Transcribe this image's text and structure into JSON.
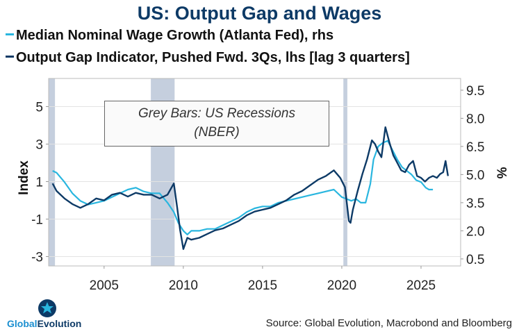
{
  "title": "US: Output Gap and Wages",
  "legend": {
    "wage_label": "Median Nominal Wage Growth (Atlanta Fed), rhs",
    "gap_label": "Output Gap Indicator, Pushed Fwd. 3Qs, lhs [lag 3 quarters]"
  },
  "annotation": {
    "line1": "Grey Bars: US Recessions",
    "line2": "(NBER)"
  },
  "source": "Source: Global Evolution, Macrobond and Bloomberg",
  "logo": {
    "part1": "Global",
    "part2": "Evolution"
  },
  "colors": {
    "wage": "#29b6df",
    "gap": "#0d3a66",
    "recession": "#c5cfde",
    "title": "#0d3a66"
  },
  "chart_data": {
    "type": "line",
    "title": "US: Output Gap and Wages",
    "xlabel": "",
    "ylabel_left": "Index",
    "ylabel_right": "%",
    "x_range": [
      2001.5,
      2027.5
    ],
    "x_ticks": [
      "2005",
      "2010",
      "2015",
      "2020",
      "2025"
    ],
    "x_tick_values": [
      2005,
      2010,
      2015,
      2020,
      2025
    ],
    "y_left_range": [
      -3.5,
      6.5
    ],
    "y_left_ticks": [
      "5",
      "3",
      "1",
      "-1",
      "-3"
    ],
    "y_left_tick_values": [
      5,
      3,
      1,
      -1,
      -3
    ],
    "y_right_range": [
      0.125,
      10.125
    ],
    "y_right_ticks": [
      "9.5",
      "8.0",
      "6.5",
      "5.0",
      "3.5",
      "2.0",
      "0.5"
    ],
    "y_right_tick_values": [
      9.5,
      8.0,
      6.5,
      5.0,
      3.5,
      2.0,
      0.5
    ],
    "recessions": [
      [
        2001.2,
        2001.9
      ],
      [
        2007.95,
        2009.45
      ],
      [
        2020.1,
        2020.35
      ]
    ],
    "series": [
      {
        "name": "Output Gap Indicator, Pushed Fwd. 3Qs, lhs [lag 3 quarters]",
        "axis": "left",
        "x": [
          2001.75,
          2002.0,
          2002.5,
          2003.0,
          2003.5,
          2004.0,
          2004.5,
          2005.0,
          2005.5,
          2006.0,
          2006.5,
          2007.0,
          2007.5,
          2008.0,
          2008.5,
          2009.0,
          2009.4,
          2009.6,
          2009.8,
          2010.0,
          2010.25,
          2010.5,
          2011.0,
          2011.5,
          2012.0,
          2012.5,
          2013.0,
          2013.5,
          2014.0,
          2014.5,
          2015.0,
          2015.5,
          2016.0,
          2016.5,
          2017.0,
          2017.5,
          2018.0,
          2018.5,
          2019.0,
          2019.5,
          2019.9,
          2020.2,
          2020.45,
          2020.55,
          2020.7,
          2021.0,
          2021.3,
          2021.6,
          2021.9,
          2022.1,
          2022.3,
          2022.5,
          2022.75,
          2023.0,
          2023.25,
          2023.5,
          2023.75,
          2024.0,
          2024.25,
          2024.5,
          2024.75,
          2025.0,
          2025.25,
          2025.5,
          2025.75,
          2026.0,
          2026.2,
          2026.4,
          2026.55,
          2026.7
        ],
        "values": [
          0.9,
          0.5,
          0.1,
          -0.2,
          -0.4,
          -0.2,
          0.1,
          0.0,
          0.3,
          0.4,
          0.2,
          0.4,
          0.3,
          0.3,
          0.1,
          0.3,
          0.9,
          -0.3,
          -1.6,
          -2.6,
          -2.0,
          -2.1,
          -2.0,
          -1.8,
          -1.6,
          -1.5,
          -1.3,
          -1.1,
          -0.8,
          -0.6,
          -0.5,
          -0.4,
          -0.2,
          0.0,
          0.3,
          0.5,
          0.8,
          1.1,
          1.3,
          1.6,
          1.2,
          0.7,
          -1.1,
          -1.2,
          -0.5,
          0.5,
          1.4,
          2.2,
          3.2,
          3.0,
          2.6,
          2.3,
          3.9,
          3.1,
          2.4,
          2.0,
          1.6,
          1.5,
          1.9,
          2.1,
          1.3,
          1.2,
          1.0,
          1.2,
          1.3,
          1.2,
          1.4,
          1.5,
          2.1,
          1.3
        ]
      },
      {
        "name": "Median Nominal Wage Growth (Atlanta Fed), rhs",
        "axis": "right",
        "x": [
          2001.75,
          2002.0,
          2002.5,
          2003.0,
          2003.5,
          2004.0,
          2004.5,
          2005.0,
          2005.5,
          2006.0,
          2006.5,
          2007.0,
          2007.5,
          2008.0,
          2008.5,
          2009.0,
          2009.4,
          2009.7,
          2010.0,
          2010.25,
          2010.5,
          2011.0,
          2011.5,
          2012.0,
          2012.5,
          2013.0,
          2013.5,
          2014.0,
          2014.5,
          2015.0,
          2015.5,
          2016.0,
          2016.5,
          2017.0,
          2017.5,
          2018.0,
          2018.5,
          2019.0,
          2019.5,
          2020.0,
          2020.3,
          2020.6,
          2020.9,
          2021.2,
          2021.5,
          2021.8,
          2022.0,
          2022.3,
          2022.6,
          2022.9,
          2023.2,
          2023.5,
          2023.8,
          2024.1,
          2024.4,
          2024.7,
          2025.0,
          2025.3,
          2025.5,
          2025.75
        ],
        "values": [
          5.2,
          5.1,
          4.6,
          4.0,
          3.6,
          3.4,
          3.5,
          3.6,
          3.8,
          4.0,
          4.2,
          4.3,
          4.1,
          4.0,
          4.0,
          3.5,
          3.0,
          2.4,
          2.0,
          1.8,
          2.0,
          2.0,
          2.1,
          2.1,
          2.3,
          2.5,
          2.7,
          3.0,
          3.2,
          3.3,
          3.3,
          3.5,
          3.6,
          3.7,
          3.8,
          3.9,
          4.0,
          4.1,
          4.2,
          3.8,
          3.7,
          3.6,
          3.7,
          3.5,
          3.5,
          4.5,
          5.8,
          6.5,
          6.7,
          6.8,
          6.3,
          5.8,
          5.4,
          5.2,
          5.0,
          4.7,
          4.6,
          4.3,
          4.2,
          4.2
        ]
      }
    ]
  }
}
